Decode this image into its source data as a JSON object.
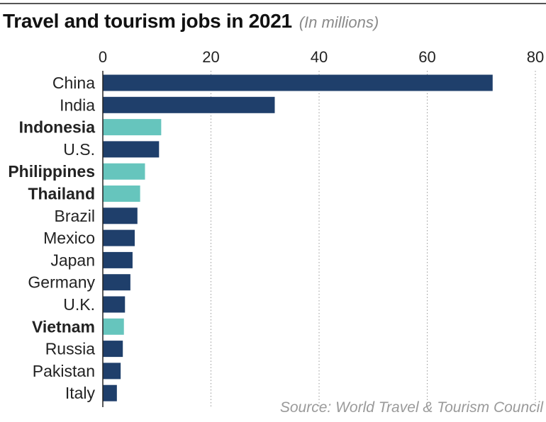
{
  "chart_data": {
    "type": "bar",
    "orientation": "horizontal",
    "title": "Travel and tourism jobs in 2021",
    "subtitle": "(In millions)",
    "source": "Source: World Travel & Tourism Council",
    "xlim": [
      0,
      80
    ],
    "xticks": [
      0,
      20,
      40,
      60,
      80
    ],
    "tick_labels": [
      "0",
      "20",
      "40",
      "60",
      "80"
    ],
    "grid": true,
    "categories": [
      "China",
      "India",
      "Indonesia",
      "U.S.",
      "Philippines",
      "Thailand",
      "Brazil",
      "Mexico",
      "Japan",
      "Germany",
      "U.K.",
      "Vietnam",
      "Russia",
      "Pakistan",
      "Italy"
    ],
    "values": [
      72.1,
      31.8,
      10.8,
      10.4,
      7.8,
      6.9,
      6.4,
      5.9,
      5.5,
      5.1,
      4.1,
      3.9,
      3.7,
      3.3,
      2.6
    ],
    "highlighted": [
      "Indonesia",
      "Philippines",
      "Thailand",
      "Vietnam"
    ],
    "colors": {
      "default_bar": "#1f3f6b",
      "highlight_bar": "#66c5bd",
      "grid": "#9a9a9a",
      "axis": "#222222"
    }
  }
}
